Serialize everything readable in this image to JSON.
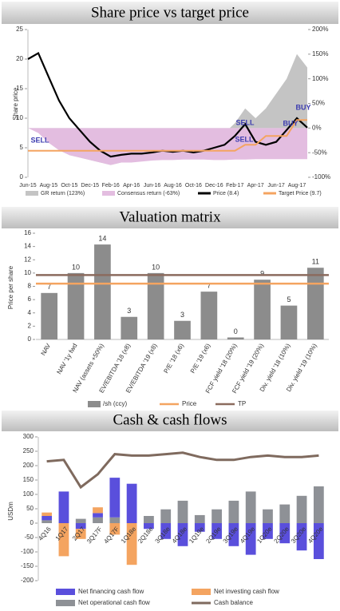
{
  "chart_data": [
    {
      "type": "line",
      "title": "Share price vs target price",
      "ylabel": "Share price",
      "categories": [
        "Jun-15",
        null,
        "Aug-15",
        null,
        "Oct-15",
        null,
        "Dec-15",
        null,
        "Feb-16",
        null,
        "Apr-16",
        null,
        "Jun-16",
        null,
        "Aug-16",
        null,
        "Oct-16",
        null,
        "Dec-16",
        null,
        "Feb-17",
        null,
        "Apr-17",
        null,
        "Jun-17",
        null,
        "Aug-17",
        null
      ],
      "series": [
        {
          "name": "GR return (123%)",
          "type": "area",
          "axis": "y2",
          "color": "#c4c4c4",
          "values": [
            0,
            -5,
            -20,
            -40,
            -55,
            -60,
            -65,
            -70,
            -75,
            -70,
            -65,
            -60,
            -55,
            -50,
            -45,
            -40,
            -40,
            -30,
            -20,
            -10,
            10,
            40,
            20,
            40,
            70,
            100,
            150,
            123
          ]
        },
        {
          "name": "Consensus return (-63%)",
          "type": "area",
          "axis": "y2",
          "color": "#e3bde0",
          "values": [
            0,
            -10,
            -30,
            -45,
            -55,
            -60,
            -65,
            -70,
            -75,
            -70,
            -70,
            -68,
            -66,
            -65,
            -65,
            -64,
            -64,
            -64,
            -65,
            -65,
            -64,
            -64,
            -63,
            -63,
            -63,
            -63,
            -63,
            -63
          ]
        },
        {
          "name": "Price (8.4)",
          "color": "#000000",
          "values": [
            20,
            21,
            17,
            13,
            10,
            8,
            6,
            4.5,
            3.5,
            3.8,
            4,
            4,
            4.2,
            4.5,
            4.3,
            4.5,
            4.2,
            4.5,
            5,
            5.5,
            7,
            9,
            6,
            5.5,
            6,
            8,
            10,
            8.4
          ]
        },
        {
          "name": "Target Price (9.7)",
          "color": "#f4a460",
          "values": [
            4.5,
            4.5,
            4.5,
            4.5,
            4.5,
            4.5,
            4.5,
            4.5,
            4.5,
            4.5,
            4.5,
            4.5,
            4.5,
            4.5,
            4.5,
            4.5,
            4.5,
            4.5,
            4.5,
            4.5,
            4.5,
            5.5,
            5.5,
            7,
            7,
            7,
            9.7,
            9.7
          ]
        }
      ],
      "ylim": [
        0,
        25
      ],
      "yticks": [
        0,
        5,
        10,
        15,
        20,
        25
      ],
      "y2lim": [
        -100,
        200
      ],
      "y2ticks": [
        {
          "value": -100,
          "label": "-100%"
        },
        {
          "value": -50,
          "label": "-50%"
        },
        {
          "value": 0,
          "label": "0%"
        },
        {
          "value": 50,
          "label": "50%"
        },
        {
          "value": 100,
          "label": "100%"
        },
        {
          "value": 150,
          "label": "150%"
        },
        {
          "value": 200,
          "label": "200%"
        }
      ],
      "annotations": [
        "SELL",
        "SELL",
        "BUY",
        "SELL",
        "BUY"
      ]
    },
    {
      "type": "bar",
      "title": "Valuation matrix",
      "ylabel": "Price per share",
      "categories": [
        "NAV",
        "NAV '1y fwd",
        "NAV (assets +50%)",
        "EV/EBITDA '18 (x8)",
        "EV/EBITDA '19 (x8)",
        "P/E '18 (x6)",
        "P/E '19 (x6)",
        "FCF yield '18 (20%)",
        "FCF yield '19 (20%)",
        "Div. yield '18 (10%)",
        "Div. yield '19 (10%)"
      ],
      "series": [
        {
          "name": "/sh (ccy)",
          "color": "#8c8c8c",
          "values": [
            7,
            10,
            14.3,
            3.4,
            10,
            2.8,
            7.2,
            0.3,
            9,
            5.1,
            10.8
          ],
          "value_labels": [
            "7",
            "10",
            "14",
            "3",
            "10",
            "3",
            "7",
            "0",
            "9",
            "5",
            "11"
          ]
        }
      ],
      "lines": [
        {
          "name": "Price",
          "color": "#f4a460",
          "value": 8.4
        },
        {
          "name": "TP",
          "color": "#8b6b5e",
          "value": 9.7
        }
      ],
      "ylim": [
        0,
        16
      ],
      "yticks": [
        0,
        2,
        4,
        6,
        8,
        10,
        12,
        14,
        16
      ]
    },
    {
      "type": "stacked_bar",
      "title": "Cash & cash flows",
      "ylabel": "USDm",
      "categories": [
        "4Q16",
        "1Q17",
        "2Q17",
        "3Q17F",
        "4Q17F",
        "1Q18e",
        "2Q18e",
        "3Q18e",
        "4Q18e",
        "1Q19e",
        "2Q19e",
        "3Q19e",
        "4Q19e",
        "1Q20e",
        "2Q20e",
        "3Q20e",
        "4Q20e"
      ],
      "series": [
        {
          "name": "Net operational cash flow",
          "color": "#8e9196",
          "values": [
            10,
            0,
            15,
            20,
            20,
            0,
            25,
            48,
            78,
            28,
            48,
            78,
            110,
            48,
            65,
            95,
            128
          ]
        },
        {
          "name": "Net financing cash flow",
          "color": "#5a4fdc",
          "values": [
            15,
            110,
            -20,
            15,
            138,
            137,
            -20,
            -55,
            -80,
            -30,
            -55,
            -80,
            -110,
            -55,
            -70,
            -95,
            -125
          ]
        },
        {
          "name": "Net investing cash flow",
          "color": "#f4a460",
          "values": [
            12,
            -115,
            -35,
            20,
            -40,
            -145,
            0,
            0,
            0,
            0,
            0,
            0,
            0,
            0,
            0,
            0,
            0
          ]
        },
        {
          "name": "Cash balance",
          "type": "line",
          "color": "#7f6a5e",
          "values": [
            215,
            220,
            125,
            170,
            240,
            235,
            235,
            240,
            245,
            230,
            220,
            220,
            230,
            235,
            230,
            230,
            235
          ]
        }
      ],
      "ylim": [
        -200,
        300
      ],
      "yticks": [
        -200,
        -150,
        -100,
        -50,
        0,
        50,
        100,
        150,
        200,
        250,
        300
      ]
    }
  ]
}
